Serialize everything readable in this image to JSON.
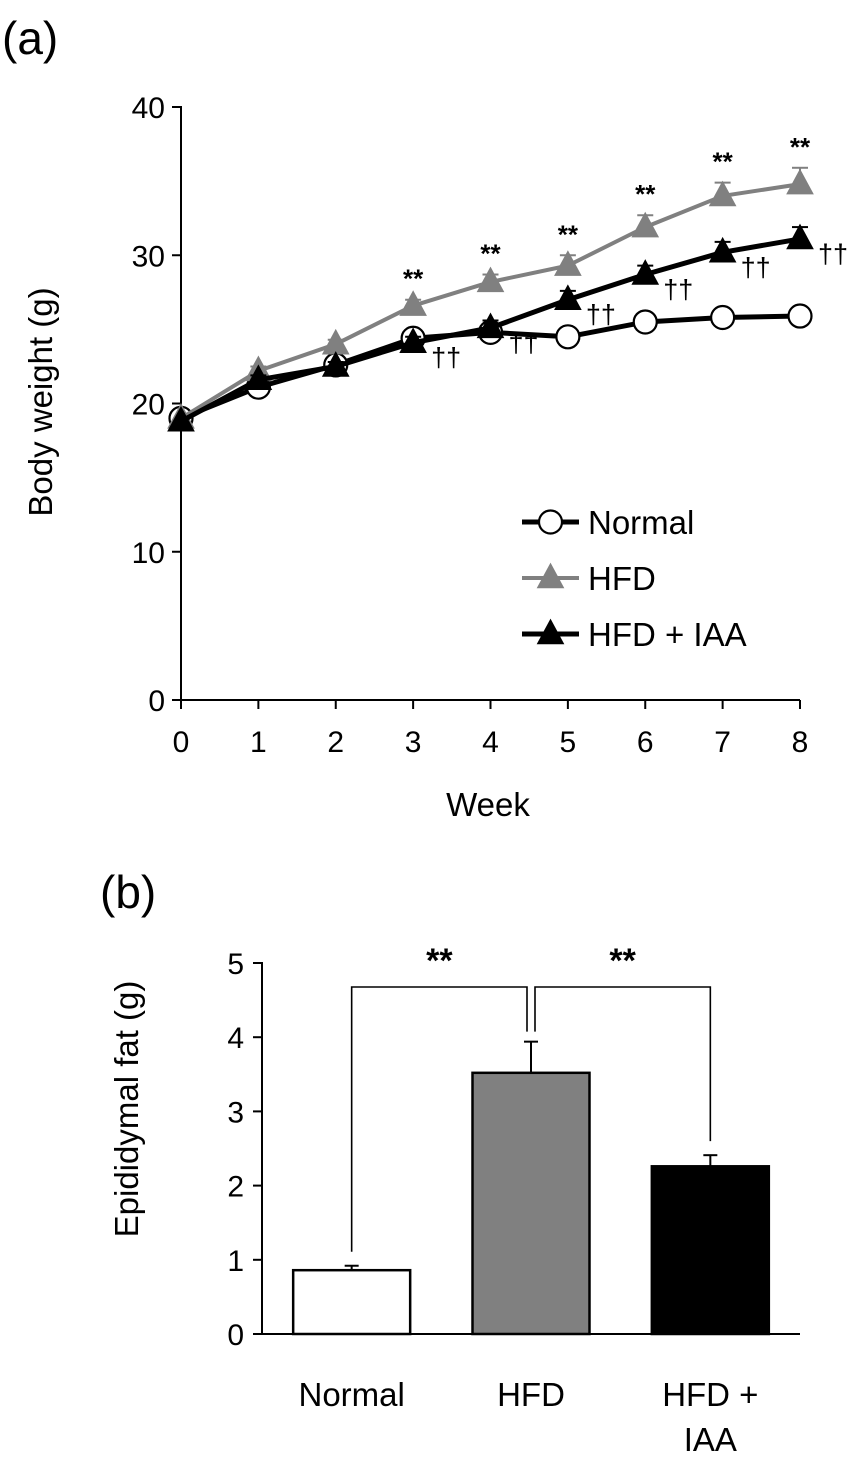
{
  "chart_data": [
    {
      "panel": "(a)",
      "type": "line",
      "xlabel": "Week",
      "ylabel": "Body weight (g)",
      "x": [
        0,
        1,
        2,
        3,
        4,
        5,
        6,
        7,
        8
      ],
      "xlim": [
        0,
        8
      ],
      "ylim": [
        0,
        40
      ],
      "yticks": [
        0,
        10,
        20,
        30,
        40
      ],
      "grid": false,
      "legend_position": "bottom-right",
      "series": [
        {
          "name": "Normal",
          "values": [
            19.0,
            21.1,
            22.6,
            24.4,
            24.8,
            24.5,
            25.5,
            25.8,
            25.9
          ],
          "color": "#000000",
          "marker": "circle-open"
        },
        {
          "name": "HFD",
          "values": [
            19.0,
            22.2,
            24.0,
            26.6,
            28.2,
            29.3,
            31.9,
            34.0,
            34.8
          ],
          "errors": [
            0,
            0.3,
            0.3,
            0.4,
            0.5,
            0.7,
            0.8,
            0.9,
            1.1
          ],
          "color": "#808080",
          "marker": "triangle"
        },
        {
          "name": "HFD + IAA",
          "values": [
            18.8,
            21.6,
            22.5,
            24.1,
            25.1,
            27.0,
            28.7,
            30.2,
            31.1
          ],
          "errors": [
            0,
            0.3,
            0.3,
            0.4,
            0.5,
            0.6,
            0.6,
            0.7,
            0.8
          ],
          "color": "#000000",
          "marker": "triangle"
        }
      ],
      "annotations": [
        {
          "x": 3,
          "hfd_mark": "**",
          "iaa_mark": "††"
        },
        {
          "x": 4,
          "hfd_mark": "**",
          "iaa_mark": "††"
        },
        {
          "x": 5,
          "hfd_mark": "**",
          "iaa_mark": "††"
        },
        {
          "x": 6,
          "hfd_mark": "**",
          "iaa_mark": "††"
        },
        {
          "x": 7,
          "hfd_mark": "**",
          "iaa_mark": "††"
        },
        {
          "x": 8,
          "hfd_mark": "**",
          "iaa_mark": "††"
        }
      ]
    },
    {
      "panel": "(b)",
      "type": "bar",
      "ylabel": "Epididymal fat (g)",
      "categories": [
        "Normal",
        "HFD",
        "HFD + IAA"
      ],
      "category_lines": [
        [
          "Normal"
        ],
        [
          "HFD"
        ],
        [
          "HFD +",
          "IAA"
        ]
      ],
      "values": [
        0.86,
        3.52,
        2.26
      ],
      "errors": [
        0.06,
        0.42,
        0.15
      ],
      "colors": [
        "#ffffff",
        "#808080",
        "#000000"
      ],
      "ylim": [
        0,
        5
      ],
      "yticks": [
        0,
        1,
        2,
        3,
        4,
        5
      ],
      "grid": false,
      "comparisons": [
        {
          "between": [
            "Normal",
            "HFD"
          ],
          "label": "**"
        },
        {
          "between": [
            "HFD",
            "HFD + IAA"
          ],
          "label": "**"
        }
      ]
    }
  ]
}
